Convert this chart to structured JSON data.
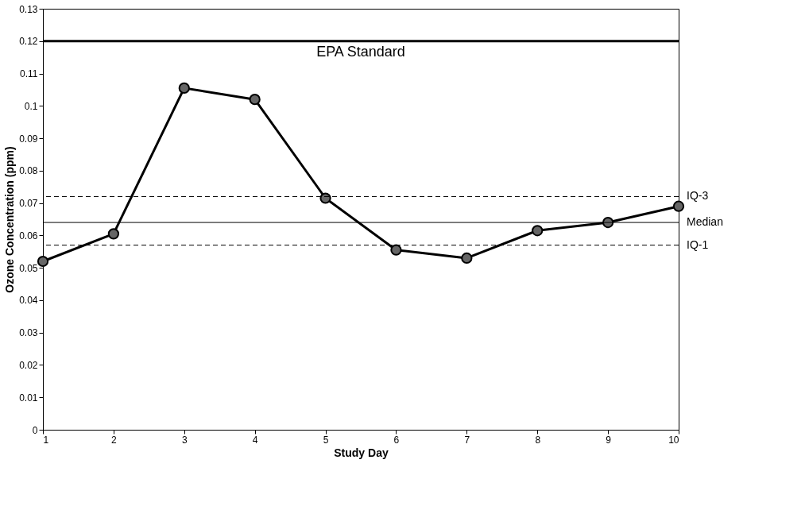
{
  "chart_data": {
    "type": "line",
    "xlabel": "Study Day",
    "ylabel": "Ozone Concentration (ppm)",
    "x": [
      1,
      2,
      3,
      4,
      5,
      6,
      7,
      8,
      9,
      10
    ],
    "series": [
      {
        "color": "#000000",
        "values": [
          0.052,
          0.0605,
          0.1055,
          0.102,
          0.0715,
          0.0555,
          0.053,
          0.0615,
          0.064,
          0.069
        ]
      }
    ],
    "xlim": [
      1,
      10
    ],
    "xticks": [
      1,
      2,
      3,
      4,
      5,
      6,
      7,
      8,
      9,
      10
    ],
    "ylim": [
      0,
      0.13
    ],
    "yticks": [
      0,
      0.01,
      0.02,
      0.03,
      0.04,
      0.05,
      0.06,
      0.07,
      0.08,
      0.09,
      0.1,
      0.11,
      0.12,
      0.13
    ],
    "ref_lines": [
      {
        "axis": "y",
        "value": 0.12,
        "label": "EPA Standard",
        "color": "#000000",
        "line_style": "solid"
      },
      {
        "axis": "y",
        "value": 0.072,
        "label": "IQ-3",
        "color": "#000000",
        "line_style": "dashed"
      },
      {
        "axis": "y",
        "value": 0.064,
        "label": "Median",
        "color": "#000000",
        "line_style": "solid"
      },
      {
        "axis": "y",
        "value": 0.057,
        "label": "IQ-1",
        "color": "#000000",
        "line_style": "dashed"
      }
    ],
    "marker": "circle",
    "line_style": "solid",
    "grid": false
  }
}
